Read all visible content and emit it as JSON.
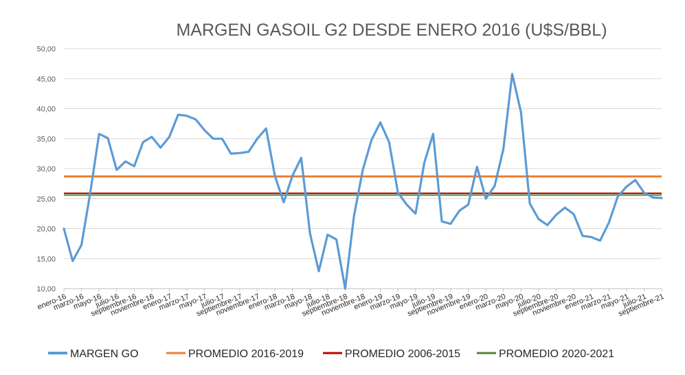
{
  "chart_data": {
    "type": "line",
    "title": "MARGEN GASOIL G2 DESDE ENERO 2016 (U$S/BBL)",
    "xlabel": "",
    "ylabel": "",
    "ylim": [
      10,
      50
    ],
    "ytick_labels": [
      "10,00",
      "15,00",
      "20,00",
      "25,00",
      "30,00",
      "35,00",
      "40,00",
      "45,00",
      "50,00"
    ],
    "grid": true,
    "legend_position": "bottom",
    "xtick_labels": [
      "enero-16",
      "marzo-16",
      "mayo-16",
      "julio-16",
      "septiembre-16",
      "noviembre-16",
      "enero-17",
      "marzo-17",
      "mayo-17",
      "julio-17",
      "septiembre-17",
      "noviembre-17",
      "enero-18",
      "marzo-18",
      "mayo-18",
      "julio-18",
      "septiembre-18",
      "noviembre-18",
      "enero-19",
      "marzo-19",
      "mayo-19",
      "julio-19",
      "septiembre-19",
      "noviembre-19",
      "enero-20",
      "marzo-20",
      "mayo-20",
      "julio-20",
      "septiembre-20",
      "noviembre-20",
      "enero-21",
      "marzo-21",
      "mayo-21",
      "julio-21",
      "septiembre-21"
    ],
    "series": [
      {
        "name": "MARGEN GO",
        "color": "#5B9BD5",
        "values": [
          20.0,
          14.6,
          17.3,
          26.0,
          35.8,
          35.1,
          29.8,
          31.2,
          30.4,
          34.4,
          35.3,
          33.5,
          35.3,
          39.0,
          38.8,
          38.2,
          36.4,
          35.0,
          35.0,
          32.5,
          32.6,
          32.8,
          35.0,
          36.7,
          28.8,
          24.4,
          28.8,
          31.8,
          19.2,
          12.9,
          19.0,
          18.2,
          10.0,
          22.1,
          29.8,
          34.8,
          37.7,
          34.4,
          26.0,
          24.0,
          22.5,
          31.0,
          35.8,
          21.2,
          20.8,
          23.0,
          24.0,
          30.3,
          25.0,
          27.1,
          33.3,
          45.8,
          39.4,
          24.2,
          21.6,
          20.6,
          22.3,
          23.5,
          22.4,
          18.8,
          18.6,
          18.0,
          21.0,
          25.3,
          27.0,
          28.1,
          26.0,
          25.2,
          25.1
        ]
      },
      {
        "name": "PROMEDIO 2016-2019",
        "color": "#ED7D31",
        "values": [
          28.7
        ]
      },
      {
        "name": "PROMEDIO 2006-2015",
        "color": "#C00000",
        "values": [
          25.9
        ]
      },
      {
        "name": "PROMEDIO 2020-2021",
        "color": "#548235",
        "values": [
          25.6
        ]
      }
    ]
  }
}
